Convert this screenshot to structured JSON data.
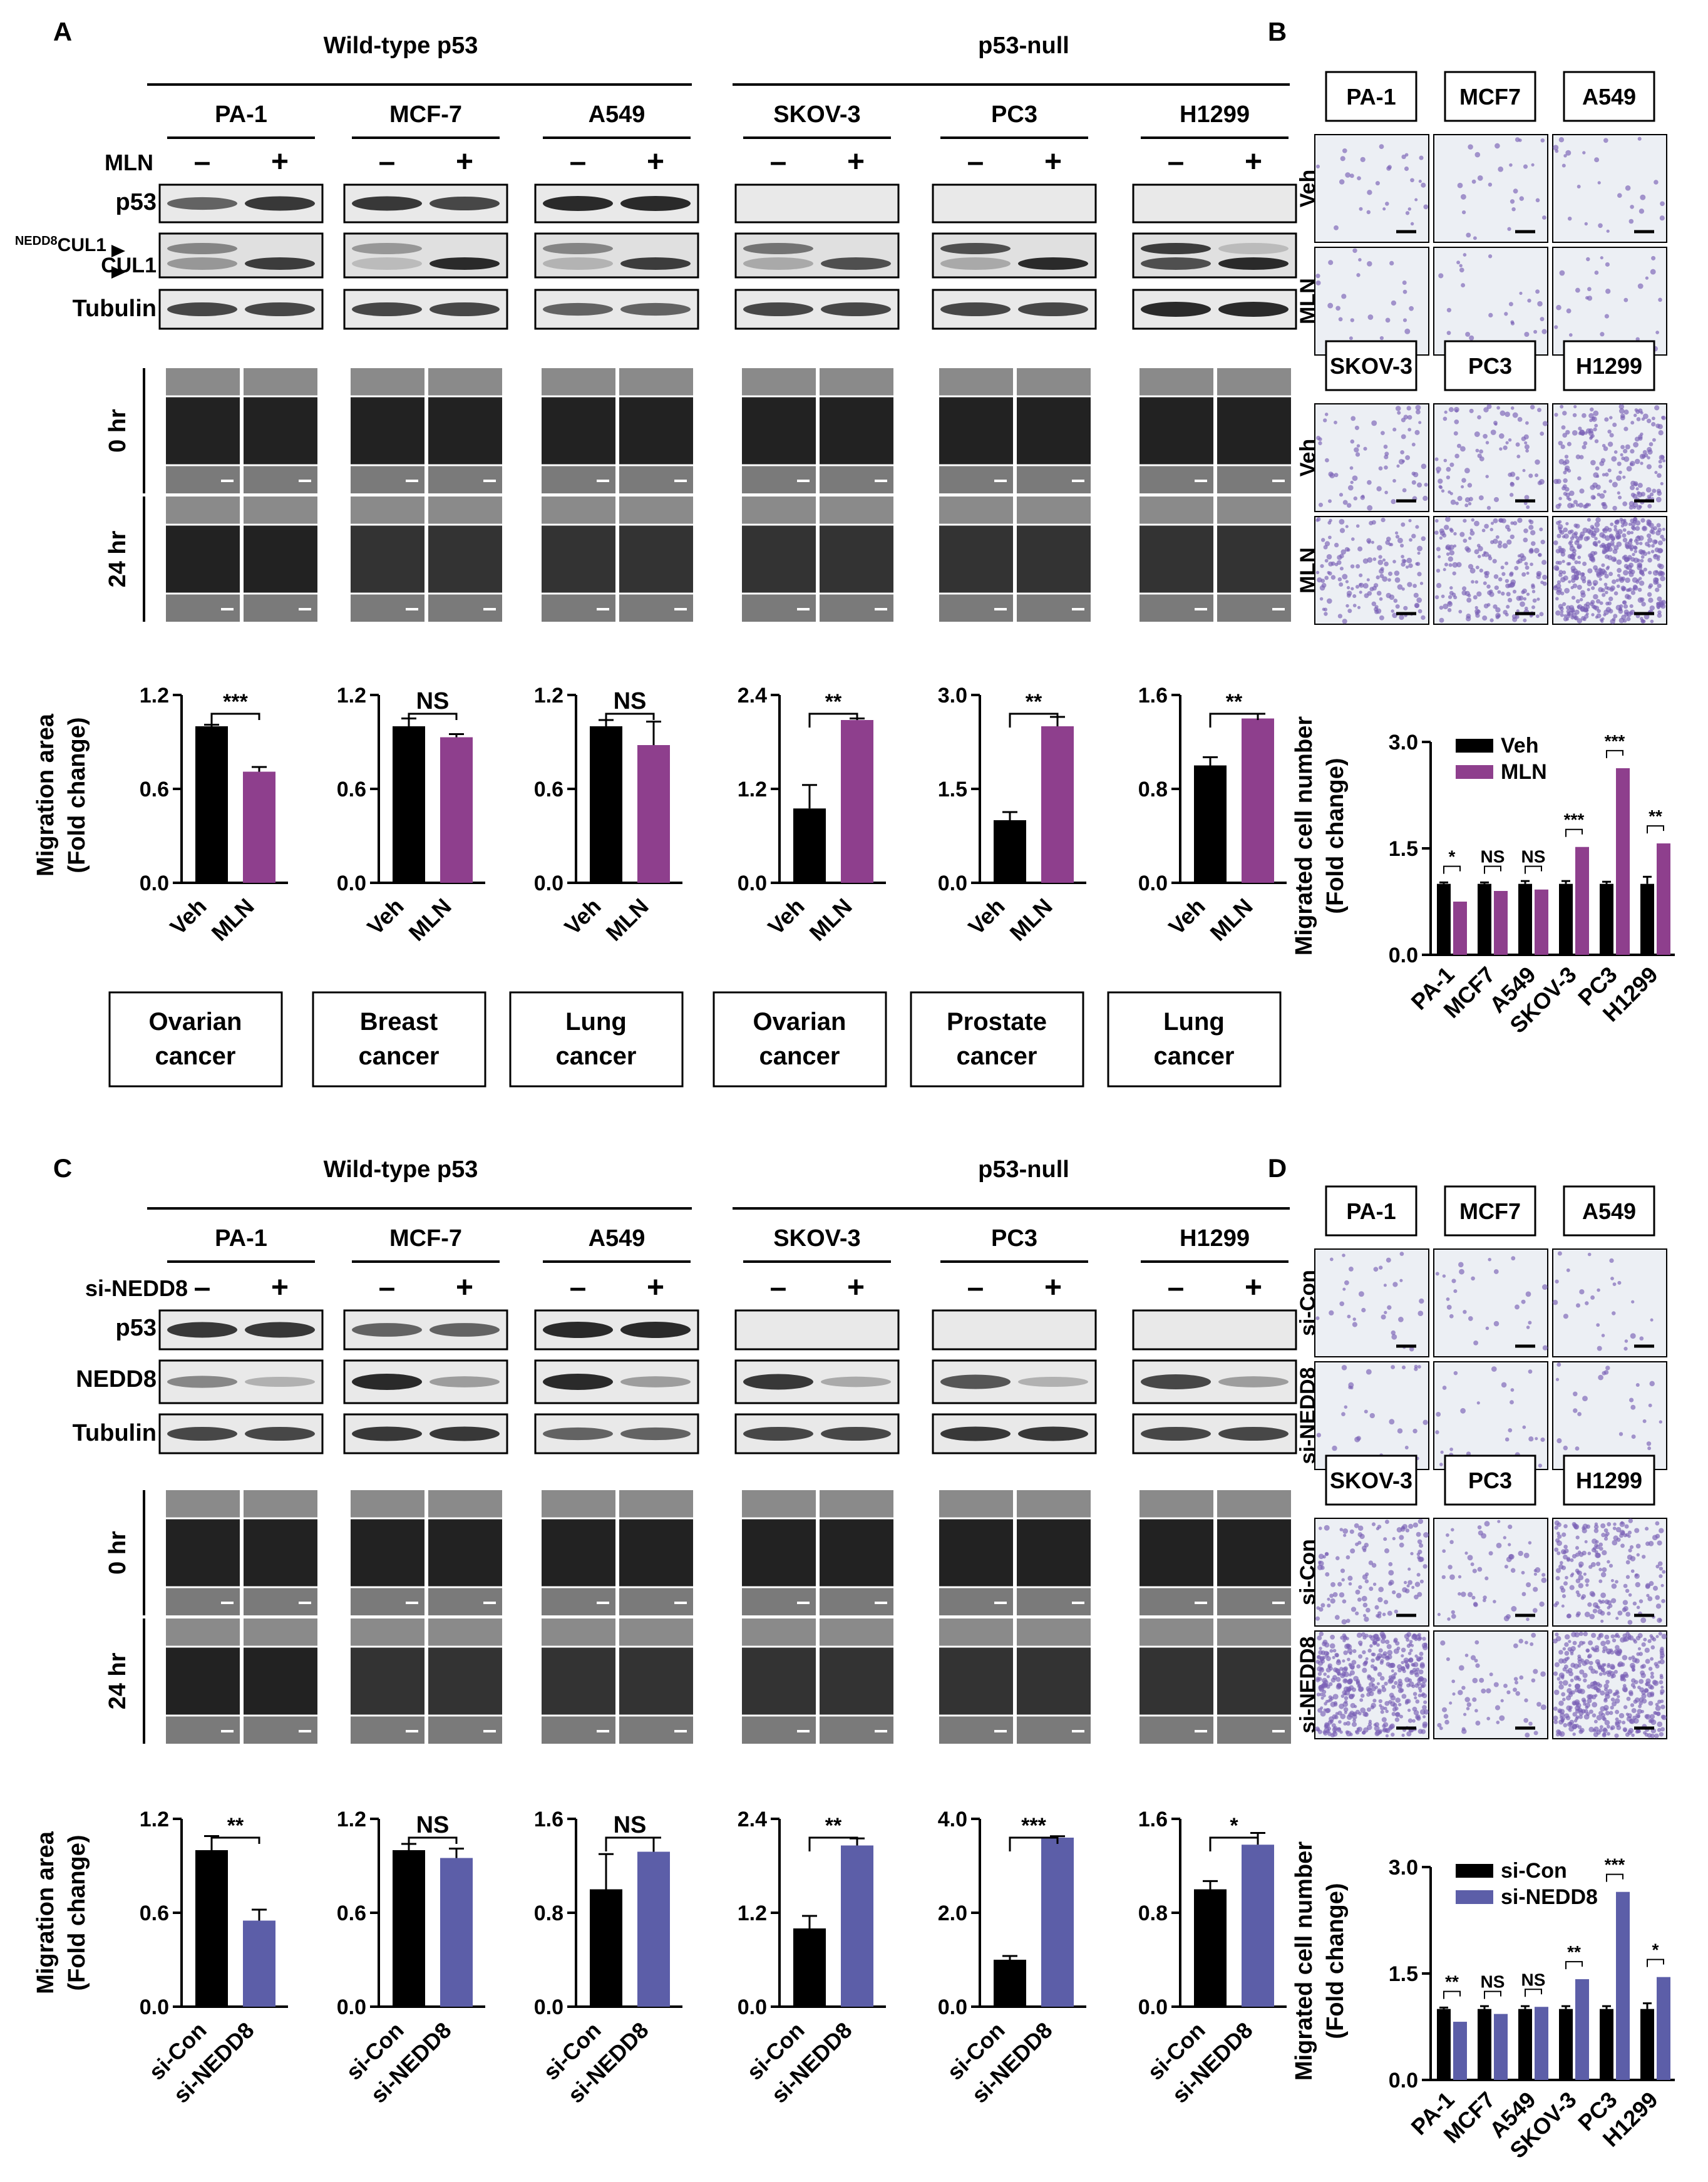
{
  "panels": {
    "a": "A",
    "b": "B",
    "c": "C",
    "d": "D"
  },
  "groups": {
    "wt": "Wild-type p53",
    "null": "p53-null"
  },
  "cell_lines": [
    "PA-1",
    "MCF-7",
    "A549",
    "SKOV-3",
    "PC3",
    "H1299"
  ],
  "transwell_cell_lines": [
    "PA-1",
    "MCF7",
    "A549",
    "SKOV-3",
    "PC3",
    "H1299"
  ],
  "sign": {
    "minus": "–",
    "plus": "+"
  },
  "blot_top": {
    "treatment": "MLN",
    "rows": [
      "p53",
      "CUL1",
      "Tubulin"
    ],
    "nedd8_sup": "NEDD8",
    "nedd8_cul1": "CUL1"
  },
  "blot_bottom": {
    "treatment": "si-NEDD8",
    "rows": [
      "p53",
      "NEDD8",
      "Tubulin"
    ]
  },
  "times": [
    "0 hr",
    "24 hr"
  ],
  "cancer_types": [
    [
      "Ovarian",
      "cancer"
    ],
    [
      "Breast",
      "cancer"
    ],
    [
      "Lung",
      "cancer"
    ],
    [
      "Ovarian",
      "cancer"
    ],
    [
      "Prostate",
      "cancer"
    ],
    [
      "Lung",
      "cancer"
    ]
  ],
  "mig_ylabel": [
    "Migration area",
    "(Fold change)"
  ],
  "trans_ylabel": [
    "Migrated cell number",
    "(Fold change)"
  ],
  "transwell_rows_top": [
    "Veh",
    "MLN"
  ],
  "transwell_rows_bottom": [
    "si-Con",
    "si-NEDD8"
  ],
  "colors": {
    "control": "#000000",
    "mln": "#8e3f8d",
    "si_nedd8": "#5c5ea8",
    "western_band": "#2a2a2a",
    "transwell_cell": "#7a5fb5"
  },
  "chart_data": [
    {
      "type": "bar",
      "panel": "A",
      "cell_line": "PA-1",
      "categories": [
        "Veh",
        "MLN"
      ],
      "values": [
        1.0,
        0.71
      ],
      "errors": [
        0.01,
        0.03
      ],
      "ylim": [
        0,
        1.2
      ],
      "yticks": [
        "0.0",
        "0.6",
        "1.2"
      ],
      "sig": "***"
    },
    {
      "type": "bar",
      "panel": "A",
      "cell_line": "MCF-7",
      "categories": [
        "Veh",
        "MLN"
      ],
      "values": [
        1.0,
        0.93
      ],
      "errors": [
        0.05,
        0.02
      ],
      "ylim": [
        0,
        1.2
      ],
      "yticks": [
        "0.0",
        "0.6",
        "1.2"
      ],
      "sig": "NS"
    },
    {
      "type": "bar",
      "panel": "A",
      "cell_line": "A549",
      "categories": [
        "Veh",
        "MLN"
      ],
      "values": [
        1.0,
        0.88
      ],
      "errors": [
        0.04,
        0.15
      ],
      "ylim": [
        0,
        1.2
      ],
      "yticks": [
        "0.0",
        "0.6",
        "1.2"
      ],
      "sig": "NS"
    },
    {
      "type": "bar",
      "panel": "A",
      "cell_line": "SKOV-3",
      "categories": [
        "Veh",
        "MLN"
      ],
      "values": [
        0.95,
        2.08
      ],
      "errors": [
        0.3,
        0.02
      ],
      "ylim": [
        0,
        2.4
      ],
      "yticks": [
        "0.0",
        "1.2",
        "2.4"
      ],
      "sig": "**"
    },
    {
      "type": "bar",
      "panel": "A",
      "cell_line": "PC3",
      "categories": [
        "Veh",
        "MLN"
      ],
      "values": [
        1.0,
        2.5
      ],
      "errors": [
        0.13,
        0.15
      ],
      "ylim": [
        0,
        3.0
      ],
      "yticks": [
        "0.0",
        "1.5",
        "3.0"
      ],
      "sig": "**"
    },
    {
      "type": "bar",
      "panel": "A",
      "cell_line": "H1299",
      "categories": [
        "Veh",
        "MLN"
      ],
      "values": [
        1.0,
        1.4
      ],
      "errors": [
        0.07,
        0.04
      ],
      "ylim": [
        0,
        1.6
      ],
      "yticks": [
        "0.0",
        "0.8",
        "1.6"
      ],
      "sig": "**"
    },
    {
      "type": "bar",
      "panel": "B",
      "xcategories": [
        "PA-1",
        "MCF7",
        "A549",
        "SKOV-3",
        "PC3",
        "H1299"
      ],
      "series": [
        {
          "name": "Veh",
          "values": [
            1.0,
            1.0,
            1.0,
            1.0,
            1.0,
            1.0
          ],
          "errors": [
            0.02,
            0.02,
            0.04,
            0.04,
            0.03,
            0.1
          ]
        },
        {
          "name": "MLN",
          "values": [
            0.75,
            0.9,
            0.92,
            1.52,
            2.63,
            1.57
          ],
          "errors": [
            0.06,
            0.02,
            0.05,
            0.09,
            0.04,
            0.08
          ]
        }
      ],
      "ylim": [
        0,
        3.0
      ],
      "yticks": [
        "0.0",
        "1.5",
        "3.0"
      ],
      "sig": [
        "*",
        "NS",
        "NS",
        "***",
        "***",
        "**"
      ]
    },
    {
      "type": "bar",
      "panel": "C",
      "cell_line": "PA-1",
      "categories": [
        "si-Con",
        "si-NEDD8"
      ],
      "values": [
        1.0,
        0.55
      ],
      "errors": [
        0.09,
        0.07
      ],
      "ylim": [
        0,
        1.2
      ],
      "yticks": [
        "0.0",
        "0.6",
        "1.2"
      ],
      "sig": "**"
    },
    {
      "type": "bar",
      "panel": "C",
      "cell_line": "MCF-7",
      "categories": [
        "si-Con",
        "si-NEDD8"
      ],
      "values": [
        1.0,
        0.95
      ],
      "errors": [
        0.04,
        0.06
      ],
      "ylim": [
        0,
        1.2
      ],
      "yticks": [
        "0.0",
        "0.6",
        "1.2"
      ],
      "sig": "NS"
    },
    {
      "type": "bar",
      "panel": "C",
      "cell_line": "A549",
      "categories": [
        "si-Con",
        "si-NEDD8"
      ],
      "values": [
        1.0,
        1.32
      ],
      "errors": [
        0.3,
        0.12
      ],
      "ylim": [
        0,
        1.6
      ],
      "yticks": [
        "0.0",
        "0.8",
        "1.6"
      ],
      "sig": "NS"
    },
    {
      "type": "bar",
      "panel": "C",
      "cell_line": "SKOV-3",
      "categories": [
        "si-Con",
        "si-NEDD8"
      ],
      "values": [
        1.0,
        2.06
      ],
      "errors": [
        0.16,
        0.09
      ],
      "ylim": [
        0,
        2.4
      ],
      "yticks": [
        "0.0",
        "1.2",
        "2.4"
      ],
      "sig": "**"
    },
    {
      "type": "bar",
      "panel": "C",
      "cell_line": "PC3",
      "categories": [
        "si-Con",
        "si-NEDD8"
      ],
      "values": [
        1.0,
        3.6
      ],
      "errors": [
        0.08,
        0.03
      ],
      "ylim": [
        0,
        4.0
      ],
      "yticks": [
        "0.0",
        "2.0",
        "4.0"
      ],
      "sig": "***"
    },
    {
      "type": "bar",
      "panel": "C",
      "cell_line": "H1299",
      "categories": [
        "si-Con",
        "si-NEDD8"
      ],
      "values": [
        1.0,
        1.38
      ],
      "errors": [
        0.07,
        0.1
      ],
      "ylim": [
        0,
        1.6
      ],
      "yticks": [
        "0.0",
        "0.8",
        "1.6"
      ],
      "sig": "*"
    },
    {
      "type": "bar",
      "panel": "D",
      "xcategories": [
        "PA-1",
        "MCF7",
        "A549",
        "SKOV-3",
        "PC3",
        "H1299"
      ],
      "series": [
        {
          "name": "si-Con",
          "values": [
            1.0,
            1.0,
            1.0,
            1.0,
            1.0,
            1.0
          ],
          "errors": [
            0.02,
            0.04,
            0.04,
            0.04,
            0.04,
            0.08
          ]
        },
        {
          "name": "si-NEDD8",
          "values": [
            0.82,
            0.93,
            1.03,
            1.42,
            2.65,
            1.45
          ]
        }
      ],
      "ylim": [
        0,
        3.0
      ],
      "yticks": [
        "0.0",
        "1.5",
        "3.0"
      ],
      "sig": [
        "**",
        "NS",
        "NS",
        "**",
        "***",
        "*"
      ]
    }
  ]
}
